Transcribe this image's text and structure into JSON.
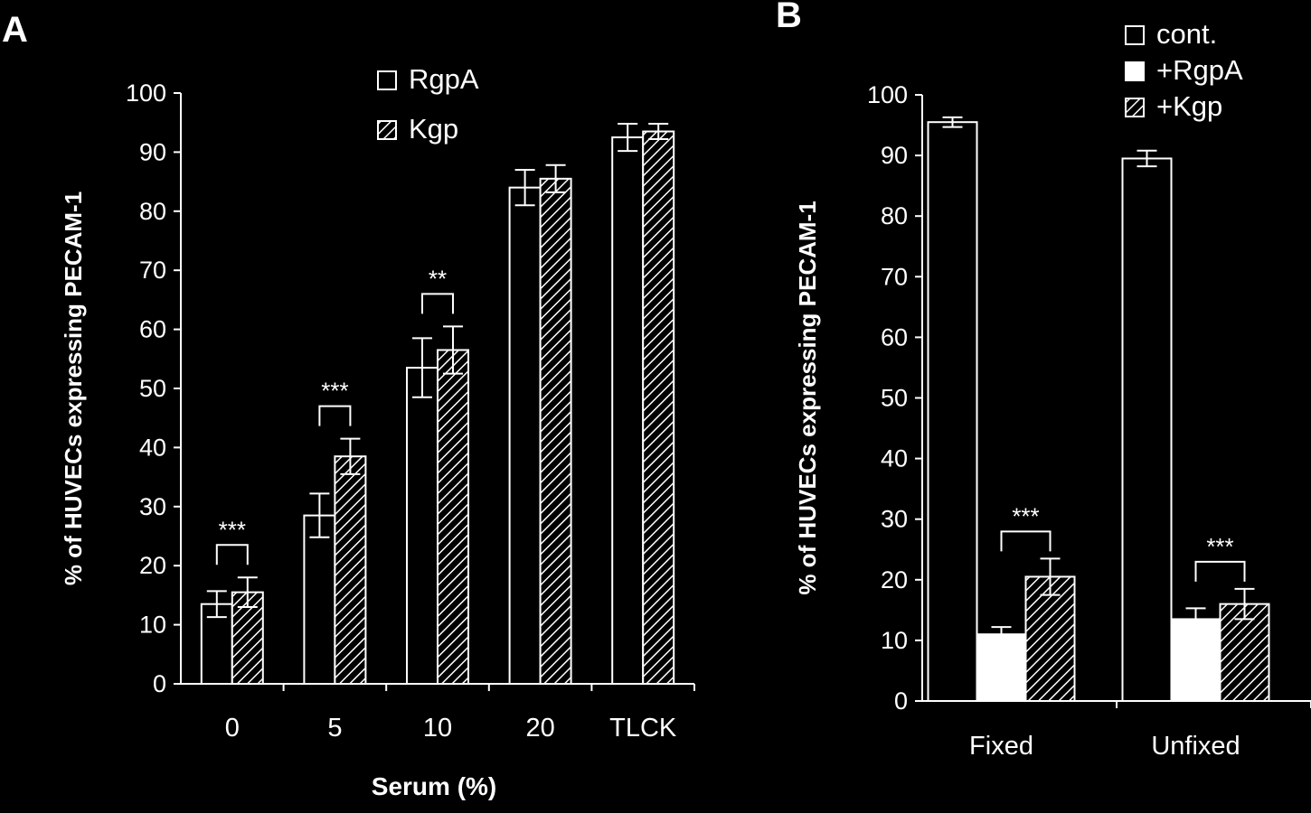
{
  "colors": {
    "background": "#000000",
    "foreground": "#ffffff"
  },
  "chart_data": [
    {
      "type": "bar",
      "panel_label": "A",
      "categories": [
        "0",
        "5",
        "10",
        "20",
        "TLCK"
      ],
      "series": [
        {
          "name": "RgpA",
          "fill": "open",
          "values": [
            13.5,
            28.5,
            53.5,
            84,
            92.5
          ],
          "errors": [
            2.2,
            3.7,
            5.0,
            3.0,
            2.3
          ]
        },
        {
          "name": "Kgp",
          "fill": "hatched",
          "values": [
            15.5,
            38.5,
            56.5,
            85.5,
            93.5
          ],
          "errors": [
            2.5,
            3.0,
            4.0,
            2.3,
            1.3
          ]
        }
      ],
      "xlabel": "Serum (%)",
      "ylabel": "% of HUVECs expressing PECAM-1",
      "ylim": [
        0,
        100
      ],
      "yticks": [
        "0",
        "10",
        "20",
        "30",
        "40",
        "50",
        "60",
        "70",
        "80",
        "90",
        "100"
      ],
      "significance": [
        {
          "category_index": 0,
          "label": "***"
        },
        {
          "category_index": 1,
          "label": "***"
        },
        {
          "category_index": 2,
          "label": "**"
        }
      ],
      "legend_position": "top-center"
    },
    {
      "type": "bar",
      "panel_label": "B",
      "categories": [
        "Fixed",
        "Unfixed"
      ],
      "series": [
        {
          "name": "cont.",
          "fill": "open",
          "values": [
            95.5,
            89.5
          ],
          "errors": [
            0.8,
            1.3
          ]
        },
        {
          "name": "+RgpA",
          "fill": "solid",
          "values": [
            11,
            13.5
          ],
          "errors": [
            1.2,
            1.8
          ]
        },
        {
          "name": "+Kgp",
          "fill": "hatched",
          "values": [
            20.5,
            16
          ],
          "errors": [
            3.0,
            2.5
          ]
        }
      ],
      "xlabel": "",
      "ylabel": "% of HUVECs expressing PECAM-1",
      "ylim": [
        0,
        100
      ],
      "yticks": [
        "0",
        "10",
        "20",
        "30",
        "40",
        "50",
        "60",
        "70",
        "80",
        "90",
        "100"
      ],
      "significance": [
        {
          "category_index": 0,
          "label": "***"
        },
        {
          "category_index": 1,
          "label": "***"
        }
      ],
      "legend_position": "top-right"
    }
  ]
}
